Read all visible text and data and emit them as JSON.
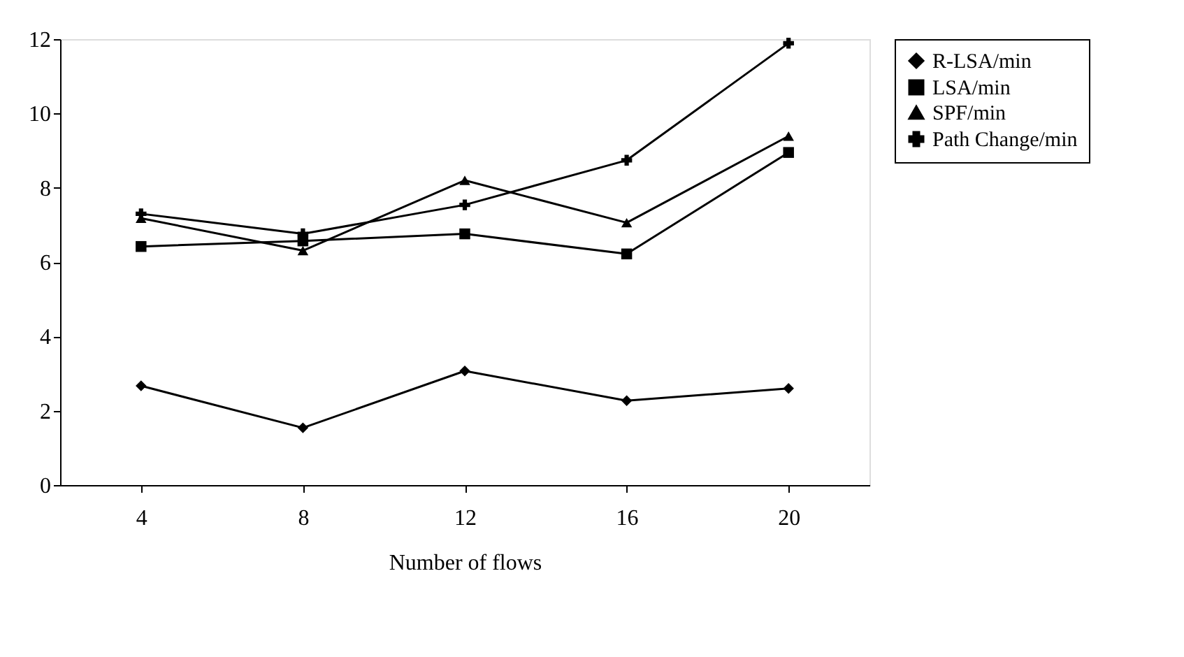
{
  "chart_data": {
    "type": "line",
    "xlabel": "Number of flows",
    "categories": [
      "4",
      "8",
      "12",
      "16",
      "20"
    ],
    "ylim": [
      0,
      12
    ],
    "yticks": [
      0,
      2,
      4,
      6,
      8,
      10,
      12
    ],
    "grid": false,
    "legend": "right",
    "series": [
      {
        "name": "R-LSA/min",
        "color": "#000000",
        "marker": "diamond",
        "values": [
          2.67,
          1.54,
          3.07,
          2.27,
          2.6
        ]
      },
      {
        "name": "LSA/min",
        "color": "#000000",
        "marker": "square",
        "values": [
          6.42,
          6.57,
          6.76,
          6.22,
          8.95
        ]
      },
      {
        "name": "SPF/min",
        "color": "#000000",
        "marker": "triangle",
        "values": [
          7.18,
          6.31,
          8.2,
          7.06,
          9.39
        ]
      },
      {
        "name": "Path Change/min",
        "color": "#000000",
        "marker": "cross",
        "values": [
          7.3,
          6.76,
          7.54,
          8.74,
          11.89
        ]
      }
    ]
  }
}
